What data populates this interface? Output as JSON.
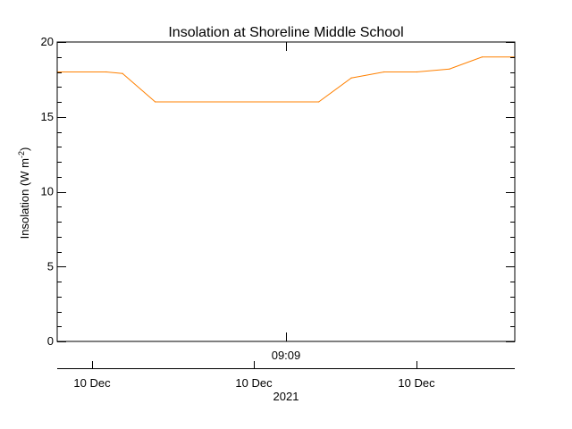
{
  "chart_data": {
    "type": "line",
    "title": "Insolation at Shoreline Middle School",
    "ylabel_main": "Insolation (W m",
    "ylabel_exp": "-2",
    "ylabel_close": ")",
    "ylim": [
      0,
      20
    ],
    "y_major_ticks": [
      0,
      5,
      10,
      15,
      20
    ],
    "y_minor_step": 1,
    "x_domain": [
      0,
      14
    ],
    "x_upper_tick_label": "09:09",
    "x_lower_tick_labels": [
      "10 Dec",
      "10 Dec",
      "10 Dec"
    ],
    "x_year_label": "2021",
    "line_color": "#ff8000",
    "grid": false,
    "series": [
      {
        "x": [
          0,
          1.5,
          2,
          3,
          8,
          9,
          10,
          11,
          12,
          13,
          14
        ],
        "values": [
          18.0,
          18.0,
          17.9,
          16.0,
          16.0,
          17.6,
          18.0,
          18.0,
          18.2,
          19.0,
          19.0
        ]
      }
    ]
  }
}
